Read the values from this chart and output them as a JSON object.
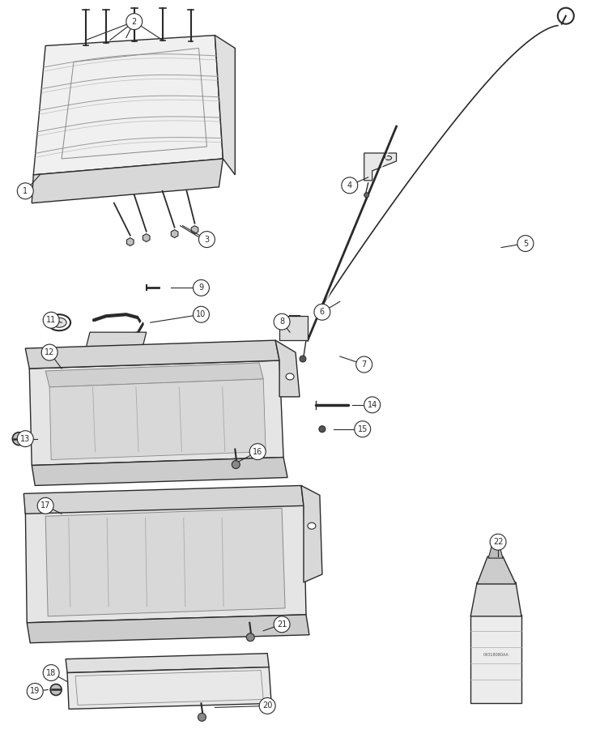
{
  "bg": "#ffffff",
  "lc": "#2a2a2a",
  "fig_w": 7.41,
  "fig_h": 9.0,
  "dpi": 100
}
